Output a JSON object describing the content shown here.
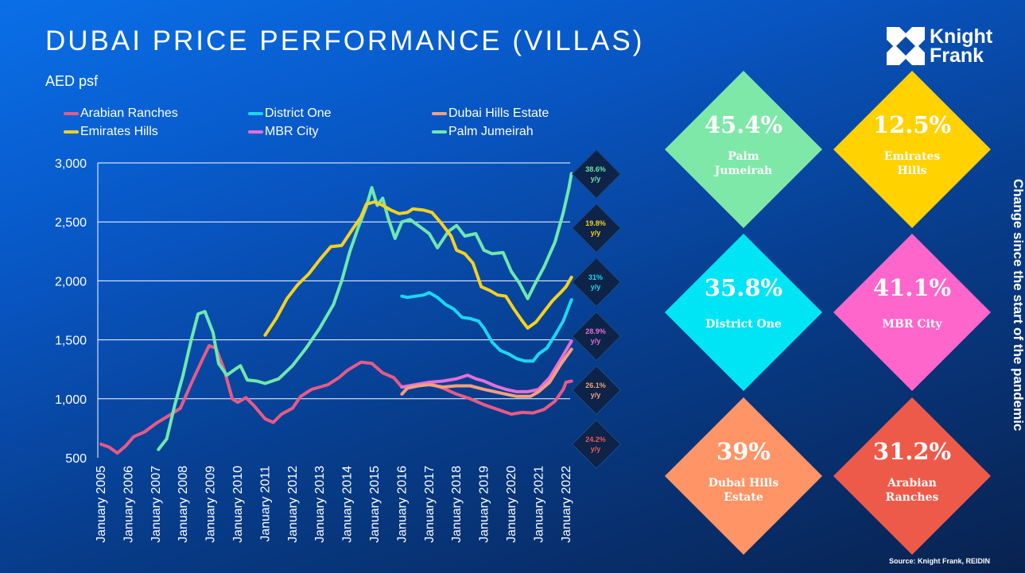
{
  "header": {
    "title": "DUBAI PRICE PERFORMANCE (VILLAS)",
    "unit": "AED psf",
    "logo": {
      "line1": "Knight",
      "line2": "Frank",
      "icon": "knight-frank-logo-icon"
    }
  },
  "side_label": "Change since the start of the pandemic",
  "source": "Source: Knight Frank, REIDIN",
  "legend": [
    {
      "name": "Arabian Ranches",
      "color": "#e85a86"
    },
    {
      "name": "District One",
      "color": "#19d8f2"
    },
    {
      "name": "Dubai Hills Estate",
      "color": "#f4a07c"
    },
    {
      "name": "Emirates Hills",
      "color": "#f5d21e"
    },
    {
      "name": "MBR City",
      "color": "#e56fd8"
    },
    {
      "name": "Palm Jumeirah",
      "color": "#6ee8ad"
    }
  ],
  "yoy_badges": [
    {
      "value": "38.6%",
      "suffix": "y/y",
      "color": "#6ee8ad"
    },
    {
      "value": "19.8%",
      "suffix": "y/y",
      "color": "#f5d21e"
    },
    {
      "value": "31%",
      "suffix": "y/y",
      "color": "#19d8f2"
    },
    {
      "value": "28.9%",
      "suffix": "y/y",
      "color": "#e56fd8"
    },
    {
      "value": "26.1%",
      "suffix": "y/y",
      "color": "#f4a07c"
    },
    {
      "value": "24.2%",
      "suffix": "y/y",
      "color": "#e85a5a"
    }
  ],
  "pandemic_change": [
    {
      "value": "45.4%",
      "name": "Palm Jumeirah",
      "color": "#7ee8a8"
    },
    {
      "value": "12.5%",
      "name": "Emirates Hills",
      "color": "#ffd200"
    },
    {
      "value": "35.8%",
      "name": "District One",
      "color": "#00e5f5"
    },
    {
      "value": "41.1%",
      "name": "MBR City",
      "color": "#ff66cc"
    },
    {
      "value": "39%",
      "name": "Dubai Hills Estate",
      "color": "#ff9466"
    },
    {
      "value": "31.2%",
      "name": "Arabian Ranches",
      "color": "#ee5a4a"
    }
  ],
  "chart_data": {
    "type": "line",
    "title": "DUBAI PRICE PERFORMANCE (VILLAS)",
    "ylabel": "AED psf",
    "xlabel": "",
    "ylim": [
      500,
      3000
    ],
    "yticks": [
      3000,
      2500,
      2000,
      1500,
      1000,
      500
    ],
    "ytick_labels": [
      "3,000",
      "2,500",
      "2,000",
      "1,500",
      "1,000",
      "500"
    ],
    "xlim": [
      2005,
      2022.3
    ],
    "xticks": [
      2005,
      2006,
      2007,
      2008,
      2009,
      2010,
      2011,
      2012,
      2013,
      2014,
      2015,
      2016,
      2017,
      2018,
      2019,
      2020,
      2021,
      2022
    ],
    "xtick_labels": [
      "January 2005",
      "January 2006",
      "January 2007",
      "January 2008",
      "January 2009",
      "January 2010",
      "January 2011",
      "January 2012",
      "January 2013",
      "January 2014",
      "January 2015",
      "January 2016",
      "January 2017",
      "January 2018",
      "January 2019",
      "January 2020",
      "January 2021",
      "January 2022"
    ],
    "grid": true,
    "legend_position": "top",
    "series": [
      {
        "name": "Arabian Ranches",
        "color": "#e85a86",
        "points": [
          [
            2005,
            615
          ],
          [
            2005.3,
            590
          ],
          [
            2005.6,
            540
          ],
          [
            2005.9,
            600
          ],
          [
            2006.2,
            680
          ],
          [
            2006.6,
            720
          ],
          [
            2007,
            790
          ],
          [
            2007.5,
            860
          ],
          [
            2007.9,
            920
          ],
          [
            2008.3,
            1130
          ],
          [
            2008.7,
            1330
          ],
          [
            2008.95,
            1450
          ],
          [
            2009.2,
            1430
          ],
          [
            2009.5,
            1250
          ],
          [
            2009.8,
            1000
          ],
          [
            2010,
            970
          ],
          [
            2010.3,
            1010
          ],
          [
            2010.6,
            940
          ],
          [
            2011,
            830
          ],
          [
            2011.3,
            800
          ],
          [
            2011.6,
            870
          ],
          [
            2012,
            920
          ],
          [
            2012.3,
            1020
          ],
          [
            2012.7,
            1080
          ],
          [
            2013,
            1100
          ],
          [
            2013.3,
            1120
          ],
          [
            2013.7,
            1180
          ],
          [
            2014,
            1240
          ],
          [
            2014.5,
            1310
          ],
          [
            2014.9,
            1300
          ],
          [
            2015.3,
            1220
          ],
          [
            2015.7,
            1180
          ],
          [
            2016,
            1100
          ],
          [
            2016.5,
            1110
          ],
          [
            2017,
            1130
          ],
          [
            2017.5,
            1090
          ],
          [
            2018,
            1040
          ],
          [
            2018.5,
            1000
          ],
          [
            2019,
            950
          ],
          [
            2019.5,
            910
          ],
          [
            2020,
            870
          ],
          [
            2020.4,
            885
          ],
          [
            2020.8,
            880
          ],
          [
            2021.2,
            910
          ],
          [
            2021.6,
            980
          ],
          [
            2021.9,
            1080
          ],
          [
            2022,
            1140
          ],
          [
            2022.2,
            1150
          ]
        ]
      },
      {
        "name": "Palm Jumeirah",
        "color": "#6ee8ad",
        "points": [
          [
            2007.1,
            570
          ],
          [
            2007.4,
            660
          ],
          [
            2007.7,
            950
          ],
          [
            2008,
            1200
          ],
          [
            2008.3,
            1500
          ],
          [
            2008.55,
            1720
          ],
          [
            2008.8,
            1740
          ],
          [
            2009.1,
            1560
          ],
          [
            2009.3,
            1300
          ],
          [
            2009.6,
            1200
          ],
          [
            2009.9,
            1250
          ],
          [
            2010.1,
            1280
          ],
          [
            2010.35,
            1160
          ],
          [
            2010.7,
            1150
          ],
          [
            2011,
            1130
          ],
          [
            2011.5,
            1170
          ],
          [
            2012,
            1280
          ],
          [
            2012.5,
            1430
          ],
          [
            2013,
            1600
          ],
          [
            2013.5,
            1800
          ],
          [
            2013.8,
            2000
          ],
          [
            2014.1,
            2250
          ],
          [
            2014.4,
            2450
          ],
          [
            2014.7,
            2630
          ],
          [
            2014.9,
            2790
          ],
          [
            2015.1,
            2640
          ],
          [
            2015.3,
            2700
          ],
          [
            2015.5,
            2530
          ],
          [
            2015.75,
            2360
          ],
          [
            2016,
            2500
          ],
          [
            2016.3,
            2520
          ],
          [
            2016.6,
            2470
          ],
          [
            2017,
            2400
          ],
          [
            2017.3,
            2280
          ],
          [
            2017.7,
            2420
          ],
          [
            2018,
            2470
          ],
          [
            2018.3,
            2380
          ],
          [
            2018.7,
            2400
          ],
          [
            2019,
            2260
          ],
          [
            2019.3,
            2230
          ],
          [
            2019.7,
            2240
          ],
          [
            2020,
            2080
          ],
          [
            2020.3,
            1980
          ],
          [
            2020.6,
            1850
          ],
          [
            2020.9,
            1990
          ],
          [
            2021.2,
            2120
          ],
          [
            2021.6,
            2330
          ],
          [
            2021.9,
            2580
          ],
          [
            2022.1,
            2780
          ],
          [
            2022.2,
            2910
          ]
        ]
      },
      {
        "name": "Emirates Hills",
        "color": "#f5d21e",
        "points": [
          [
            2011,
            1540
          ],
          [
            2011.4,
            1680
          ],
          [
            2011.8,
            1850
          ],
          [
            2012.2,
            1970
          ],
          [
            2012.6,
            2060
          ],
          [
            2013,
            2180
          ],
          [
            2013.4,
            2290
          ],
          [
            2013.8,
            2300
          ],
          [
            2014.2,
            2440
          ],
          [
            2014.5,
            2540
          ],
          [
            2014.7,
            2650
          ],
          [
            2015,
            2670
          ],
          [
            2015.3,
            2640
          ],
          [
            2015.6,
            2600
          ],
          [
            2015.9,
            2570
          ],
          [
            2016.2,
            2580
          ],
          [
            2016.4,
            2610
          ],
          [
            2016.8,
            2600
          ],
          [
            2017.1,
            2580
          ],
          [
            2017.4,
            2500
          ],
          [
            2017.8,
            2380
          ],
          [
            2018,
            2260
          ],
          [
            2018.3,
            2230
          ],
          [
            2018.6,
            2150
          ],
          [
            2018.9,
            1950
          ],
          [
            2019.2,
            1920
          ],
          [
            2019.5,
            1880
          ],
          [
            2019.8,
            1870
          ],
          [
            2020.1,
            1760
          ],
          [
            2020.4,
            1660
          ],
          [
            2020.6,
            1600
          ],
          [
            2020.9,
            1650
          ],
          [
            2021.2,
            1740
          ],
          [
            2021.5,
            1830
          ],
          [
            2021.8,
            1900
          ],
          [
            2022,
            1950
          ],
          [
            2022.2,
            2030
          ]
        ]
      },
      {
        "name": "District One",
        "color": "#19d8f2",
        "points": [
          [
            2016,
            1870
          ],
          [
            2016.2,
            1860
          ],
          [
            2016.5,
            1870
          ],
          [
            2016.8,
            1880
          ],
          [
            2017,
            1900
          ],
          [
            2017.3,
            1860
          ],
          [
            2017.6,
            1800
          ],
          [
            2017.9,
            1760
          ],
          [
            2018.2,
            1690
          ],
          [
            2018.5,
            1680
          ],
          [
            2018.8,
            1660
          ],
          [
            2019,
            1600
          ],
          [
            2019.3,
            1480
          ],
          [
            2019.6,
            1410
          ],
          [
            2019.9,
            1380
          ],
          [
            2020.2,
            1340
          ],
          [
            2020.5,
            1320
          ],
          [
            2020.8,
            1320
          ],
          [
            2021,
            1380
          ],
          [
            2021.3,
            1430
          ],
          [
            2021.6,
            1540
          ],
          [
            2021.9,
            1660
          ],
          [
            2022.2,
            1840
          ]
        ]
      },
      {
        "name": "MBR City",
        "color": "#e56fd8",
        "points": [
          [
            2016,
            1100
          ],
          [
            2016.5,
            1120
          ],
          [
            2017,
            1140
          ],
          [
            2017.5,
            1150
          ],
          [
            2018,
            1170
          ],
          [
            2018.4,
            1200
          ],
          [
            2018.7,
            1170
          ],
          [
            2019,
            1150
          ],
          [
            2019.4,
            1110
          ],
          [
            2019.8,
            1080
          ],
          [
            2020.2,
            1060
          ],
          [
            2020.6,
            1060
          ],
          [
            2021,
            1080
          ],
          [
            2021.4,
            1180
          ],
          [
            2021.8,
            1330
          ],
          [
            2022.2,
            1490
          ]
        ]
      },
      {
        "name": "Dubai Hills Estate",
        "color": "#f4a07c",
        "points": [
          [
            2016,
            1040
          ],
          [
            2016.2,
            1090
          ],
          [
            2016.6,
            1110
          ],
          [
            2017,
            1120
          ],
          [
            2017.5,
            1100
          ],
          [
            2018,
            1110
          ],
          [
            2018.5,
            1110
          ],
          [
            2019,
            1080
          ],
          [
            2019.4,
            1060
          ],
          [
            2019.8,
            1040
          ],
          [
            2020.2,
            1020
          ],
          [
            2020.7,
            1020
          ],
          [
            2021,
            1060
          ],
          [
            2021.4,
            1140
          ],
          [
            2021.8,
            1290
          ],
          [
            2022.2,
            1420
          ]
        ]
      }
    ]
  }
}
